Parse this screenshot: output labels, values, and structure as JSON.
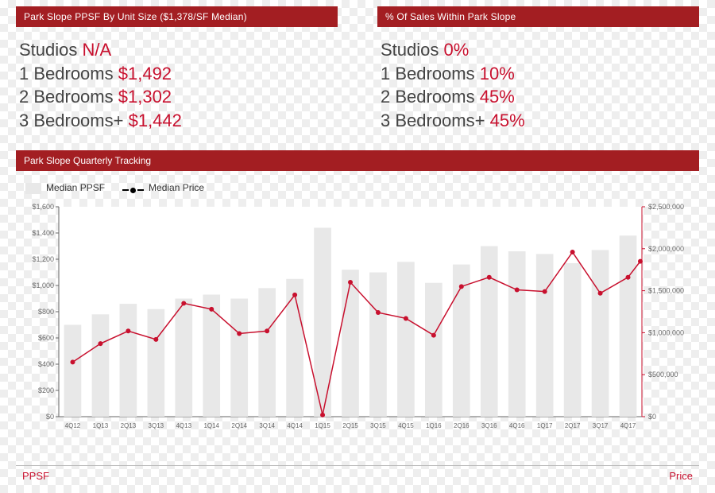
{
  "header_left": "Park Slope  PPSF By Unit Size ($1,378/SF Median)",
  "header_right": "% Of Sales Within Park Slope",
  "stats_left": [
    {
      "label": "Studios",
      "value": "N/A"
    },
    {
      "label": "1 Bedrooms",
      "value": "$1,492"
    },
    {
      "label": "2 Bedrooms",
      "value": "$1,302"
    },
    {
      "label": "3 Bedrooms+",
      "value": "$1,442"
    }
  ],
  "stats_right": [
    {
      "label": "Studios",
      "value": "0%"
    },
    {
      "label": "1 Bedrooms",
      "value": "10%"
    },
    {
      "label": "2 Bedrooms",
      "value": "45%"
    },
    {
      "label": "3 Bedrooms+",
      "value": "45%"
    }
  ],
  "tracking_banner": "Park Slope  Quarterly Tracking",
  "legend": {
    "bar": "Median PPSF",
    "line": "Median Price"
  },
  "bottom_left_label": "PPSF",
  "bottom_right_label": "Price",
  "chart": {
    "type": "combo-bar-line",
    "background_color": "#ffffff",
    "bar_color": "#e8e8e8",
    "line_color": "#c8102e",
    "marker_color": "#c8102e",
    "text_color": "#666666",
    "axis_left_color": "#666666",
    "axis_right_color": "#c8102e",
    "axis_font_size": 9,
    "categories": [
      "4Q12",
      "1Q13",
      "2Q13",
      "3Q13",
      "4Q13",
      "1Q14",
      "2Q14",
      "3Q14",
      "4Q14",
      "1Q15",
      "2Q15",
      "3Q15",
      "4Q15",
      "1Q16",
      "2Q16",
      "3Q16",
      "4Q16",
      "1Q17",
      "2Q17",
      "3Q17",
      "4Q17"
    ],
    "left_axis": {
      "label": "PPSF",
      "min": 0,
      "max": 1600,
      "step": 200,
      "tick_format": "$#,##0"
    },
    "right_axis": {
      "label": "Price",
      "min": 0,
      "max": 2500000,
      "step": 500000,
      "tick_format": "$#,##0"
    },
    "bars_ppsf": [
      700,
      780,
      860,
      820,
      900,
      930,
      900,
      980,
      1050,
      1440,
      1120,
      1100,
      1180,
      1020,
      1160,
      1300,
      1260,
      1240,
      1170,
      1270,
      1380
    ],
    "line_price": [
      650000,
      870000,
      1020000,
      920000,
      1350000,
      1280000,
      990000,
      1020000,
      1450000,
      20000,
      1600000,
      1240000,
      1170000,
      970000,
      1550000,
      1660000,
      1510000,
      1490000,
      1960000,
      1470000,
      1660000
    ],
    "line_price_end": 1850000,
    "bar_width_ratio": 0.62,
    "marker_radius": 3,
    "line_width": 1.5
  }
}
